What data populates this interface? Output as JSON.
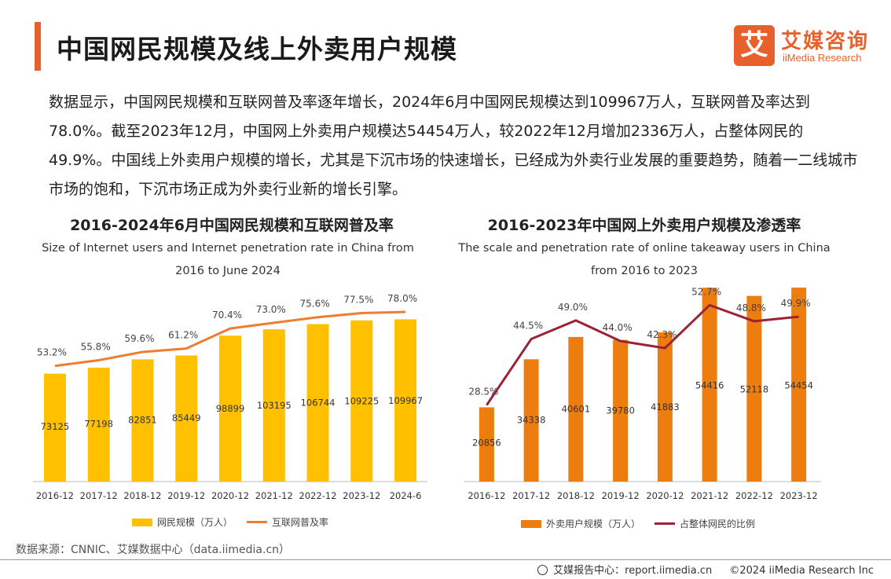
{
  "header": {
    "title": "中国网民规模及线上外卖用户规模",
    "logo_mark": "艾",
    "logo_cn": "艾媒咨询",
    "logo_en": "iiMedia Research",
    "accent_color": "#e8612c"
  },
  "description": "数据显示，中国网民规模和互联网普及率逐年增长，2024年6月中国网民规模达到109967万人，互联网普及率达到78.0%。截至2023年12月，中国网上外卖用户规模达54454万人，较2022年12月增加2336万人，占整体网民的49.9%。中国线上外卖用户规模的增长，尤其是下沉市场的快速增长，已经成为外卖行业发展的重要趋势，随着一二线城市市场的饱和，下沉市场正成为外卖行业新的增长引擎。",
  "charts": [
    {
      "title": "2016-2024年6月中国网民规模和互联网普及率",
      "subtitle_line1": "Size of Internet users and Internet penetration rate in China from",
      "subtitle_line2": "2016 to June 2024",
      "legend_bar": "网民规模（万人）",
      "legend_line": "互联网普及率"
    },
    {
      "title": "2016-2023年中国网上外卖用户规模及渗透率",
      "subtitle_line1": "The scale and penetration rate of online takeaway users in China",
      "subtitle_line2": "from 2016 to 2023",
      "legend_bar": "外卖用户规模（万人）",
      "legend_line": "占整体网民的比例"
    }
  ],
  "chart_data": [
    {
      "type": "bar",
      "categories": [
        "2016-12",
        "2017-12",
        "2018-12",
        "2019-12",
        "2020-12",
        "2021-12",
        "2022-12",
        "2023-12",
        "2024-6"
      ],
      "series": [
        {
          "name": "网民规模（万人）",
          "kind": "bar",
          "values": [
            73125,
            77198,
            82851,
            85449,
            98899,
            103195,
            106744,
            109225,
            109967
          ],
          "color": "#ffc000"
        },
        {
          "name": "互联网普及率",
          "kind": "line",
          "values": [
            53.2,
            55.8,
            59.6,
            61.2,
            70.4,
            73.0,
            75.6,
            77.5,
            78.0
          ],
          "labels": [
            "53.2%",
            "55.8%",
            "59.6%",
            "61.2%",
            "70.4%",
            "73.0%",
            "75.6%",
            "77.5%",
            "78.0%"
          ],
          "color": "#ed7d31"
        }
      ],
      "bar_ylim": [
        0,
        140000
      ],
      "line_ylim": [
        0,
        95
      ]
    },
    {
      "type": "bar",
      "categories": [
        "2016-12",
        "2017-12",
        "2018-12",
        "2019-12",
        "2020-12",
        "2021-12",
        "2022-12",
        "2023-12"
      ],
      "series": [
        {
          "name": "外卖用户规模（万人）",
          "kind": "bar",
          "values": [
            20856,
            34338,
            40601,
            39780,
            41883,
            54416,
            52118,
            54454
          ],
          "color": "#ed7d0f"
        },
        {
          "name": "占整体网民的比例",
          "kind": "line",
          "values": [
            28.5,
            44.5,
            49.0,
            44.0,
            42.3,
            52.7,
            48.8,
            49.9
          ],
          "labels": [
            "28.5%",
            "44.5%",
            "49.0%",
            "44.0%",
            "42.3%",
            "52.7%",
            "48.8%",
            "49.9%"
          ],
          "color": "#9b2335"
        }
      ],
      "bar_ylim": [
        0,
        58000
      ],
      "line_ylim": [
        10,
        60
      ]
    }
  ],
  "source": "数据来源：CNNIC、艾媒数据中心（data.iimedia.cn）",
  "footer": {
    "report": "艾媒报告中心：report.iimedia.cn",
    "copyright": "©2024  iiMedia Research  Inc"
  }
}
